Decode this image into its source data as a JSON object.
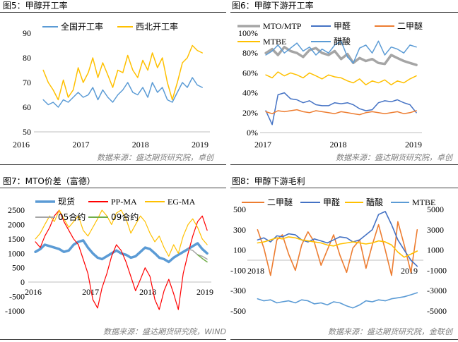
{
  "chart_data": [
    {
      "title": "图5：甲醇开工率",
      "source": "数据来源：盛达期货研究院，卓创",
      "type": "line",
      "legend": "top",
      "grid": false,
      "ylim": [
        50,
        90
      ],
      "yticks": [
        50,
        60,
        70,
        80,
        90
      ],
      "ytick_labels": [
        "50",
        "60",
        "70",
        "80",
        "90"
      ],
      "xticks": [
        "2016-01-01",
        "2017-01-01",
        "2018-01-01",
        "2019-01-01"
      ],
      "xtick_labels": [
        "2016",
        "2017",
        "2018",
        "2019"
      ],
      "x": [
        "2016-05-15",
        "2016-06-15",
        "2016-07-15",
        "2016-08-15",
        "2016-09-15",
        "2016-10-15",
        "2016-11-15",
        "2016-12-15",
        "2017-01-15",
        "2017-02-15",
        "2017-03-15",
        "2017-04-15",
        "2017-05-15",
        "2017-06-15",
        "2017-07-15",
        "2017-08-15",
        "2017-09-15",
        "2017-10-15",
        "2017-11-15",
        "2017-12-15",
        "2018-01-15",
        "2018-02-15",
        "2018-03-15",
        "2018-04-15",
        "2018-05-15",
        "2018-06-15",
        "2018-07-15",
        "2018-08-15",
        "2018-09-15",
        "2018-10-15",
        "2018-11-15",
        "2018-12-15",
        "2019-01-15"
      ],
      "series": [
        {
          "name": "全国开工率",
          "color": "#5b9bd5",
          "values": [
            63,
            61,
            62,
            60,
            63,
            62,
            64,
            66,
            64,
            65,
            68,
            63,
            67,
            64,
            62,
            65,
            67,
            70,
            66,
            65,
            68,
            64,
            70,
            66,
            68,
            63,
            62,
            66,
            70,
            68,
            72,
            69,
            68
          ]
        },
        {
          "name": "西北开工率",
          "color": "#ffc000",
          "values": [
            75,
            70,
            67,
            63,
            71,
            64,
            67,
            76,
            70,
            74,
            80,
            72,
            78,
            73,
            68,
            75,
            74,
            81,
            75,
            72,
            79,
            75,
            82,
            76,
            80,
            70,
            63,
            70,
            78,
            80,
            85,
            83,
            82
          ]
        }
      ]
    },
    {
      "title": "图6：甲醇下游开工率",
      "source": "数据来源：盛达期货研究院，卓创",
      "type": "line",
      "legend": "top",
      "grid": false,
      "ylim": [
        0,
        100
      ],
      "yticks": [
        0,
        20,
        40,
        60,
        80,
        100
      ],
      "ytick_labels": [
        "0%",
        "20%",
        "40%",
        "60%",
        "80%",
        "100%"
      ],
      "xticks": [
        "2017-01-01",
        "2018-01-01",
        "2019-01-01"
      ],
      "xtick_labels": [
        "2017",
        "2018",
        "2019"
      ],
      "x": [
        "2017-01-15",
        "2017-02-15",
        "2017-03-15",
        "2017-04-15",
        "2017-05-15",
        "2017-06-15",
        "2017-07-15",
        "2017-08-15",
        "2017-09-15",
        "2017-10-15",
        "2017-11-15",
        "2017-12-15",
        "2018-01-15",
        "2018-02-15",
        "2018-03-15",
        "2018-04-15",
        "2018-05-15",
        "2018-06-15",
        "2018-07-15",
        "2018-08-15",
        "2018-09-15",
        "2018-10-15",
        "2018-11-15",
        "2018-12-15",
        "2019-01-15"
      ],
      "series": [
        {
          "name": "MTO/MTP",
          "color": "#a5a5a5",
          "values": [
            80,
            84,
            78,
            86,
            82,
            80,
            76,
            83,
            85,
            80,
            78,
            82,
            74,
            79,
            70,
            75,
            72,
            74,
            70,
            69,
            78,
            75,
            72,
            70,
            68
          ]
        },
        {
          "name": "甲醛",
          "color": "#4472c4",
          "values": [
            22,
            8,
            38,
            40,
            34,
            33,
            30,
            32,
            28,
            27,
            27,
            30,
            29,
            30,
            28,
            24,
            22,
            23,
            30,
            32,
            31,
            33,
            30,
            28,
            20
          ]
        },
        {
          "name": "二甲醚",
          "color": "#ed7d31",
          "values": [
            21,
            19,
            22,
            21,
            22,
            23,
            21,
            20,
            22,
            21,
            20,
            19,
            21,
            20,
            19,
            18,
            20,
            21,
            20,
            19,
            20,
            21,
            19,
            20,
            22
          ]
        },
        {
          "name": "MTBE",
          "color": "#ffc000",
          "values": [
            58,
            55,
            61,
            57,
            60,
            58,
            55,
            60,
            57,
            54,
            58,
            56,
            55,
            52,
            50,
            54,
            48,
            52,
            50,
            53,
            48,
            52,
            50,
            54,
            57
          ]
        },
        {
          "name": "醋酸",
          "color": "#5b9bd5",
          "values": [
            78,
            82,
            88,
            80,
            85,
            90,
            82,
            86,
            78,
            84,
            80,
            88,
            92,
            76,
            70,
            85,
            88,
            80,
            92,
            78,
            86,
            84,
            80,
            88,
            86
          ]
        }
      ]
    },
    {
      "title": "图7：MTO价差（富德）",
      "source": "数据来源：盛达期货研究院，WIND",
      "type": "line",
      "legend": "top",
      "grid": false,
      "ylim": [
        -1000,
        2500
      ],
      "yticks": [
        -1000,
        -500,
        0,
        500,
        1000,
        1500,
        2000,
        2500
      ],
      "ytick_labels": [
        "-1000",
        "-500",
        "0",
        "500",
        "1000",
        "1500",
        "2000",
        "2500"
      ],
      "xticks": [
        "2016-01-01",
        "2017-01-01",
        "2018-01-01",
        "2019-01-01"
      ],
      "xtick_labels": [
        "2016",
        "2017",
        "2018",
        "2019"
      ],
      "x": [
        "2016-01-15",
        "2016-02-15",
        "2016-03-15",
        "2016-04-15",
        "2016-05-15",
        "2016-06-15",
        "2016-07-15",
        "2016-08-15",
        "2016-09-15",
        "2016-10-15",
        "2016-11-15",
        "2016-12-15",
        "2017-01-15",
        "2017-02-15",
        "2017-03-15",
        "2017-04-15",
        "2017-05-15",
        "2017-06-15",
        "2017-07-15",
        "2017-08-15",
        "2017-09-15",
        "2017-10-15",
        "2017-11-15",
        "2017-12-15",
        "2018-01-15",
        "2018-02-15",
        "2018-03-15",
        "2018-04-15",
        "2018-05-15",
        "2018-06-15",
        "2018-07-15",
        "2018-08-15",
        "2018-09-15",
        "2018-10-15",
        "2018-11-15",
        "2018-12-15",
        "2019-01-15"
      ],
      "series": [
        {
          "name": "现货",
          "color": "#5b9bd5",
          "values": [
            1050,
            1150,
            1300,
            1250,
            1200,
            1150,
            1050,
            1100,
            1300,
            1400,
            1450,
            1200,
            1000,
            850,
            800,
            900,
            1000,
            1100,
            1000,
            950,
            850,
            900,
            1050,
            1200,
            1150,
            1000,
            850,
            800,
            700,
            850,
            950,
            1050,
            1150,
            1250,
            1350,
            1150,
            1000
          ]
        },
        {
          "name": "PP-MA",
          "color": "#ff0000",
          "values": [
            1400,
            1200,
            1600,
            1900,
            2300,
            2500,
            2100,
            1800,
            1500,
            1300,
            800,
            300,
            -600,
            -900,
            -200,
            300,
            900,
            1300,
            1100,
            700,
            200,
            -300,
            100,
            500,
            200,
            -600,
            -950,
            -300,
            100,
            -400,
            -950,
            300,
            1000,
            1600,
            2100,
            2300,
            1800
          ]
        },
        {
          "name": "EG-MA",
          "color": "#ffc000",
          "values": [
            1500,
            1700,
            2000,
            2300,
            2100,
            2500,
            2200,
            1900,
            2100,
            2300,
            1800,
            1600,
            1900,
            2200,
            2500,
            2300,
            2000,
            2400,
            2500,
            2200,
            1700,
            2000,
            2300,
            2100,
            1700,
            1400,
            1600,
            1200,
            900,
            1300,
            1000,
            1600,
            2000,
            2200,
            1900,
            1500,
            1300
          ]
        },
        {
          "name": "05合约",
          "color": "#a5a5a5",
          "x": [
            "2018-09-15",
            "2018-10-15",
            "2018-11-15",
            "2018-12-15",
            "2019-01-15"
          ],
          "values": [
            1150,
            1100,
            950,
            900,
            800
          ]
        },
        {
          "name": "09合约",
          "color": "#70ad47",
          "x": [
            "2018-11-15",
            "2018-12-15",
            "2019-01-15"
          ],
          "values": [
            950,
            820,
            700
          ]
        }
      ]
    },
    {
      "title": "图8：甲醇下游毛利",
      "source": "数据来源：盛达期货研究院，金联创",
      "type": "line",
      "legend": "top",
      "grid": false,
      "ylim_left": [
        -500,
        500
      ],
      "yticks_left": [
        -500,
        -300,
        -100,
        100,
        300,
        500
      ],
      "ytick_labels_left": [
        "-500",
        "-300",
        "-100",
        "100",
        "300",
        "500"
      ],
      "ylim_right": [
        -5000,
        5000
      ],
      "yticks_right": [
        -5000,
        -3000,
        -1000,
        1000,
        3000,
        5000
      ],
      "ytick_labels_right": [
        "-5000",
        "-3000",
        "-1000",
        "1000",
        "3000",
        "5000"
      ],
      "xticks": [
        "2018-01-01",
        "2019-01-01"
      ],
      "xtick_labels": [
        "2018",
        "2019"
      ],
      "x": [
        "2018-01-05",
        "2018-01-20",
        "2018-02-05",
        "2018-02-20",
        "2018-03-05",
        "2018-03-20",
        "2018-04-05",
        "2018-04-20",
        "2018-05-05",
        "2018-05-20",
        "2018-06-05",
        "2018-06-20",
        "2018-07-05",
        "2018-07-20",
        "2018-08-05",
        "2018-08-20",
        "2018-09-05",
        "2018-09-20",
        "2018-10-05",
        "2018-10-20",
        "2018-11-05",
        "2018-11-20",
        "2018-12-05",
        "2018-12-20",
        "2019-01-05",
        "2019-01-20"
      ],
      "series": [
        {
          "name": "二甲醚",
          "color": "#ed7d31",
          "axis": "left",
          "values": [
            300,
            120,
            -150,
            200,
            250,
            60,
            -100,
            150,
            280,
            180,
            -50,
            100,
            250,
            50,
            -120,
            120,
            200,
            -80,
            150,
            350,
            100,
            -150,
            380,
            150,
            -120,
            300
          ]
        },
        {
          "name": "甲醛",
          "color": "#4472c4",
          "axis": "left",
          "values": [
            200,
            220,
            180,
            240,
            230,
            260,
            250,
            200,
            180,
            210,
            190,
            170,
            200,
            230,
            220,
            180,
            200,
            250,
            300,
            450,
            480,
            350,
            200,
            100,
            0,
            -60
          ]
        },
        {
          "name": "醋酸",
          "color": "#ffc000",
          "axis": "right",
          "values": [
            1700,
            1800,
            2000,
            2200,
            2100,
            2300,
            2200,
            2000,
            1900,
            1800,
            1700,
            1500,
            1400,
            1600,
            1700,
            1800,
            1700,
            1600,
            1700,
            1900,
            1800,
            1500,
            800,
            300,
            600,
            900
          ]
        },
        {
          "name": "MTBE",
          "color": "#5b9bd5",
          "axis": "left",
          "values": [
            -380,
            -400,
            -390,
            -420,
            -410,
            -400,
            -420,
            -390,
            -400,
            -430,
            -420,
            -440,
            -410,
            -420,
            -450,
            -470,
            -440,
            -400,
            -410,
            -390,
            -400,
            -380,
            -370,
            -360,
            -340,
            -320
          ]
        }
      ]
    }
  ]
}
